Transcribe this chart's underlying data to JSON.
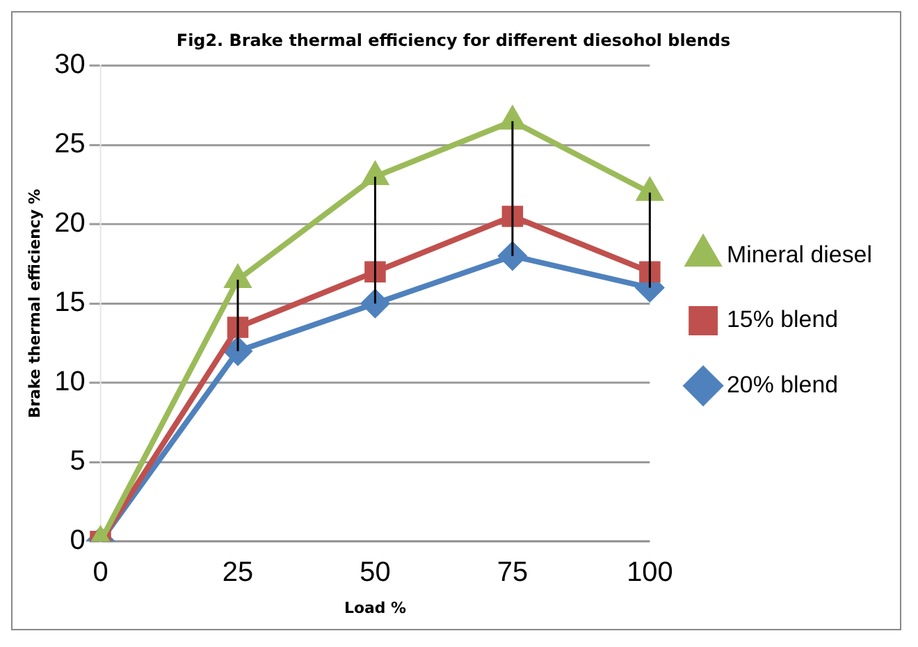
{
  "chart_data": {
    "type": "line",
    "title": "Fig2. Brake thermal efficiency for different diesohol blends",
    "xlabel": "Load %",
    "ylabel": "Brake thermal efficiency %",
    "categories": [
      "0",
      "25",
      "50",
      "75",
      "100"
    ],
    "series": [
      {
        "name": "Mineral diesel",
        "color": "#9bbb59",
        "marker": "triangle",
        "values": [
          0,
          16.5,
          23,
          26.5,
          22
        ]
      },
      {
        "name": "15% blend",
        "color": "#c0504d",
        "marker": "square",
        "values": [
          0,
          13.5,
          17,
          20.5,
          17
        ]
      },
      {
        "name": "20% blend",
        "color": "#4f81bd",
        "marker": "diamond",
        "values": [
          0,
          12,
          15,
          18,
          16
        ],
        "errors": [
          null,
          [
            12,
            16.5
          ],
          [
            15,
            23
          ],
          [
            18,
            26.5
          ],
          [
            16,
            22
          ]
        ]
      }
    ],
    "ylim": [
      0,
      30
    ],
    "yticks": [
      0,
      5,
      10,
      15,
      20,
      25,
      30
    ],
    "grid": "y",
    "legend": "right",
    "line_style": "solid"
  }
}
